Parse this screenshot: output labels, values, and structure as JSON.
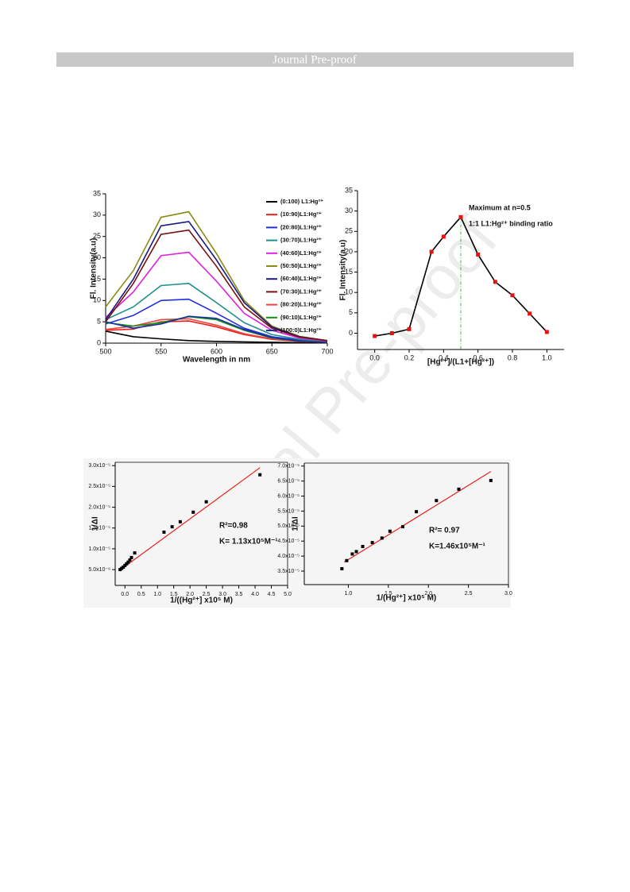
{
  "header": {
    "title": "Journal Pre-proof"
  },
  "chart_data": [
    {
      "type": "line",
      "xlabel": "Wavelength in nm",
      "ylabel": "Fl. Intensity(a.u)",
      "x": [
        500,
        525,
        550,
        575,
        600,
        625,
        650,
        675,
        700
      ],
      "xlim": [
        500,
        700
      ],
      "xticks": [
        500,
        550,
        600,
        650,
        700
      ],
      "ylim": [
        0,
        35
      ],
      "yticks": [
        0,
        5,
        10,
        15,
        20,
        25,
        30,
        35
      ],
      "series": [
        {
          "name": "(0:100) L1:Hg²⁺",
          "color": "#000000",
          "values": [
            2.8,
            1.5,
            1.0,
            0.6,
            0.4,
            0.3,
            0.2,
            0.1,
            0.1
          ]
        },
        {
          "name": "(10:90)L1:Hg²⁺",
          "color": "#e8201a",
          "values": [
            3.0,
            3.3,
            5.0,
            5.2,
            3.8,
            2.0,
            0.9,
            0.4,
            0.2
          ]
        },
        {
          "name": "(20:80)L1:Hg²⁺",
          "color": "#2030e0",
          "values": [
            4.5,
            6.5,
            10.0,
            10.3,
            7.0,
            3.5,
            1.5,
            0.7,
            0.3
          ]
        },
        {
          "name": "(30:70)L1:Hg²⁺",
          "color": "#1f8f8f",
          "values": [
            5.5,
            8.5,
            13.5,
            14.0,
            9.5,
            4.8,
            2.0,
            0.9,
            0.4
          ]
        },
        {
          "name": "(40:60)L1:Hg²⁺",
          "color": "#e020e0",
          "values": [
            6.0,
            12.0,
            20.5,
            21.3,
            14.5,
            7.0,
            3.0,
            1.2,
            0.5
          ]
        },
        {
          "name": "(50:50)L1:Hg²⁺",
          "color": "#8a8a10",
          "values": [
            8.5,
            17.0,
            29.5,
            30.8,
            21.0,
            10.0,
            4.0,
            1.6,
            0.6
          ]
        },
        {
          "name": "(60:40)L1:Hg²⁺",
          "color": "#1a1a80",
          "values": [
            5.5,
            15.0,
            27.5,
            28.5,
            19.5,
            9.5,
            3.8,
            1.5,
            0.6
          ]
        },
        {
          "name": "(70:30)L1:Hg²⁺",
          "color": "#7a1010",
          "values": [
            5.0,
            14.0,
            25.5,
            26.5,
            18.0,
            8.5,
            3.5,
            1.4,
            0.6
          ]
        },
        {
          "name": "(80:20)L1:Hg²⁺",
          "color": "#f04040",
          "values": [
            3.2,
            4.0,
            5.5,
            5.7,
            4.2,
            2.2,
            1.0,
            0.5,
            0.2
          ]
        },
        {
          "name": "(90:10)L1:Hg²⁺",
          "color": "#109010",
          "values": [
            4.8,
            4.0,
            4.8,
            6.2,
            5.5,
            3.0,
            1.2,
            0.5,
            0.2
          ]
        },
        {
          "name": "(100:0)L1:Hg²⁺",
          "color": "#1a30a0",
          "values": [
            5.0,
            3.5,
            4.5,
            6.3,
            5.8,
            3.2,
            1.3,
            0.5,
            0.2
          ]
        }
      ]
    },
    {
      "type": "line",
      "markers": true,
      "xlabel": "[Hg²⁺]/(L1+[Hg²⁺])",
      "ylabel": "Fl. Intensity(a.u)",
      "annotations": [
        "Maximum at n=0.5",
        "1:1 L1:Hg²⁺ binding ratio"
      ],
      "x": [
        0,
        0.1,
        0.2,
        0.33,
        0.4,
        0.5,
        0.6,
        0.7,
        0.8,
        0.9,
        1.0
      ],
      "values": [
        -0.7,
        0,
        1.0,
        20.0,
        23.7,
        28.5,
        19.3,
        12.6,
        9.3,
        4.8,
        0.3
      ],
      "color": "#000000",
      "marker_color": "#e81010",
      "vline": 0.5,
      "vline_color": "#2a9a2a",
      "xlim": [
        -0.1,
        1.1
      ],
      "xticks": [
        {
          "value": 0,
          "label": "0.0"
        },
        0.2,
        0.4,
        0.6,
        0.8,
        {
          "value": 1,
          "label": "1.0"
        }
      ],
      "ylim": [
        -4,
        35
      ],
      "yticks": [
        0,
        5,
        10,
        15,
        20,
        25,
        30,
        35
      ]
    },
    {
      "type": "scatter",
      "xlabel": "1/((Hg²⁺] x10⁵ M)",
      "ylabel": "1/ΔI",
      "annotations": [
        "R²=0.98",
        "K= 1.13x10⁵M⁻¹"
      ],
      "x": [
        -0.15,
        -0.1,
        -0.05,
        0,
        0.05,
        0.1,
        0.15,
        0.2,
        0.3,
        1.2,
        1.45,
        1.7,
        2.1,
        2.5,
        4.15
      ],
      "values": [
        5e-06,
        5.3e-06,
        5.6e-06,
        6e-06,
        6.4e-06,
        6.8e-06,
        7.3e-06,
        7.9e-06,
        9e-06,
        1.4e-05,
        1.53e-05,
        1.65e-05,
        1.88e-05,
        2.13e-05,
        2.78e-05
      ],
      "color": "#000000",
      "fit": {
        "x": [
          -0.15,
          4.15
        ],
        "y": [
          4.9e-06,
          2.95e-05
        ],
        "color": "#e82020"
      },
      "xlim": [
        -0.3,
        5.0
      ],
      "xticks": [
        {
          "value": 0,
          "label": "0.0"
        },
        0.5,
        {
          "value": 1,
          "label": "1.0"
        },
        1.5,
        {
          "value": 2,
          "label": "2.0"
        },
        2.5,
        {
          "value": 3,
          "label": "3.0"
        },
        3.5,
        {
          "value": 4,
          "label": "4.0"
        },
        4.5,
        {
          "value": 5,
          "label": "5.0"
        }
      ],
      "ylim": [
        1.2e-06,
        3.08e-05
      ],
      "yticks": [
        {
          "value": 5e-06,
          "label": "5.0x10⁻⁶"
        },
        {
          "value": 1e-05,
          "label": "1.0x10⁻⁵"
        },
        {
          "value": 1.5e-05,
          "label": "1.5x10⁻⁵"
        },
        {
          "value": 2e-05,
          "label": "2.0x10⁻⁵"
        },
        {
          "value": 2.5e-05,
          "label": "2.5x10⁻⁵"
        },
        {
          "value": 3e-05,
          "label": "3.0x10⁻⁵"
        }
      ]
    },
    {
      "type": "scatter",
      "xlabel": "1/(Hg²⁺] x10⁵ M)",
      "ylabel": "1/ΔI",
      "annotations": [
        "R²= 0.97",
        "K=1.46x10⁵M⁻¹"
      ],
      "x": [
        0.92,
        0.98,
        1.05,
        1.1,
        1.18,
        1.3,
        1.42,
        1.52,
        1.68,
        1.85,
        2.1,
        2.38,
        2.78
      ],
      "values": [
        3.58e-05,
        3.85e-05,
        4.07e-05,
        4.15e-05,
        4.32e-05,
        4.45e-05,
        4.6e-05,
        4.83e-05,
        4.98e-05,
        5.48e-05,
        5.85e-05,
        6.23e-05,
        6.52e-05
      ],
      "color": "#000000",
      "fit": {
        "x": [
          0.95,
          2.78
        ],
        "y": [
          3.8e-05,
          6.82e-05
        ],
        "color": "#e82020"
      },
      "xlim": [
        0.45,
        3.0
      ],
      "xticks": [
        {
          "value": 1,
          "label": "1.0"
        },
        1.5,
        {
          "value": 2,
          "label": "2.0"
        },
        2.5,
        {
          "value": 3,
          "label": "3.0"
        }
      ],
      "ylim": [
        3.05e-05,
        7.1e-05
      ],
      "yticks": [
        {
          "value": 3.5e-05,
          "label": "3.5x10⁻⁵"
        },
        {
          "value": 4e-05,
          "label": "4.0x10⁻⁵"
        },
        {
          "value": 4.5e-05,
          "label": "4.5x10⁻⁵"
        },
        {
          "value": 5e-05,
          "label": "5.0x10⁻⁵"
        },
        {
          "value": 5.5e-05,
          "label": "5.5x10⁻⁵"
        },
        {
          "value": 6e-05,
          "label": "6.0x10⁻⁵"
        },
        {
          "value": 6.5e-05,
          "label": "6.5x10⁻⁵"
        },
        {
          "value": 7e-05,
          "label": "7.0x10⁻⁵"
        }
      ]
    }
  ]
}
